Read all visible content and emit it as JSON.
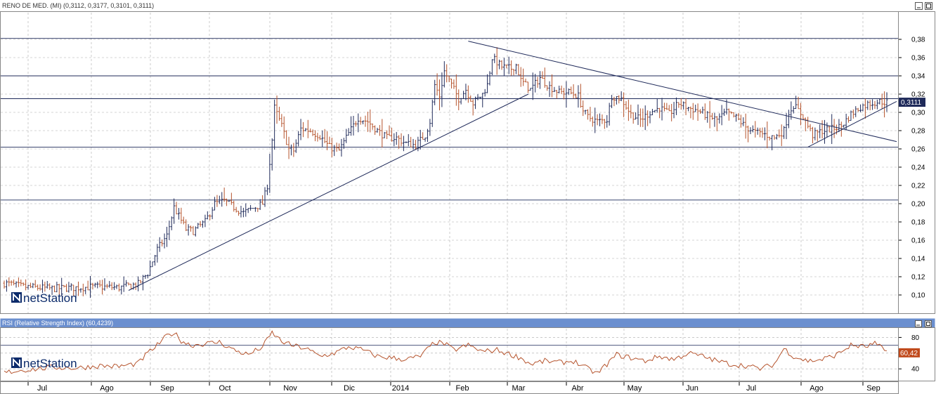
{
  "top_panel": {
    "title": "RENO DE MED. (MI) (0,3112, 0,3177, 0,3101, 0,3111)",
    "current_value_label": "0,3111",
    "brand": "netStation"
  },
  "bottom_panel": {
    "title": "RSI (Relative Strength Index) (60,4239)",
    "current_value_label": "60,42",
    "brand": "netStation"
  },
  "colors": {
    "up_bar": "#1f2a5a",
    "down_bar": "#b5532c",
    "trendline": "#1f2a5a",
    "rsi_line": "#b5532c",
    "grid": "#aaaaaa",
    "title_bar": "#6b8fcf",
    "value_badge": "#1f2a5a",
    "rsi_badge": "#c04a1c"
  },
  "chart_data": [
    {
      "type": "ohlc",
      "title": "RENO DE MED. (MI) (0,3112, 0,3177, 0,3101, 0,3111)",
      "y_ticks": [
        "0,10",
        "0,12",
        "0,14",
        "0,16",
        "0,18",
        "0,20",
        "0,22",
        "0,24",
        "0,26",
        "0,28",
        "0,30",
        "0,32",
        "0,34",
        "0,36",
        "0,38"
      ],
      "ylim": [
        0.08,
        0.41
      ],
      "x_labels": [
        "Jul",
        "Ago",
        "Sep",
        "Oct",
        "Nov",
        "Dic",
        "2014",
        "Feb",
        "Mar",
        "Abr",
        "May",
        "Jun",
        "Jul",
        "Ago",
        "Sep"
      ],
      "last": {
        "open": 0.3112,
        "high": 0.3177,
        "low": 0.3101,
        "close": 0.3111
      },
      "price_anchors": [
        [
          0,
          0.113
        ],
        [
          8,
          0.109
        ],
        [
          20,
          0.107
        ],
        [
          40,
          0.109
        ],
        [
          48,
          0.108
        ],
        [
          56,
          0.112
        ],
        [
          60,
          0.124
        ],
        [
          64,
          0.15
        ],
        [
          68,
          0.165
        ],
        [
          71,
          0.196
        ],
        [
          76,
          0.172
        ],
        [
          79,
          0.17
        ],
        [
          84,
          0.18
        ],
        [
          88,
          0.2
        ],
        [
          92,
          0.203
        ],
        [
          96,
          0.196
        ],
        [
          100,
          0.19
        ],
        [
          104,
          0.195
        ],
        [
          108,
          0.2
        ],
        [
          110,
          0.22
        ],
        [
          112,
          0.27
        ],
        [
          113,
          0.305
        ],
        [
          116,
          0.285
        ],
        [
          119,
          0.26
        ],
        [
          121,
          0.258
        ],
        [
          124,
          0.282
        ],
        [
          128,
          0.28
        ],
        [
          132,
          0.274
        ],
        [
          136,
          0.262
        ],
        [
          140,
          0.258
        ],
        [
          144,
          0.277
        ],
        [
          148,
          0.294
        ],
        [
          152,
          0.29
        ],
        [
          156,
          0.28
        ],
        [
          160,
          0.272
        ],
        [
          164,
          0.272
        ],
        [
          168,
          0.266
        ],
        [
          172,
          0.264
        ],
        [
          176,
          0.275
        ],
        [
          178,
          0.29
        ],
        [
          180,
          0.33
        ],
        [
          182,
          0.318
        ],
        [
          184,
          0.345
        ],
        [
          186,
          0.335
        ],
        [
          190,
          0.315
        ],
        [
          193,
          0.325
        ],
        [
          196,
          0.31
        ],
        [
          200,
          0.32
        ],
        [
          202,
          0.33
        ],
        [
          204,
          0.36
        ],
        [
          208,
          0.35
        ],
        [
          212,
          0.348
        ],
        [
          214,
          0.352
        ],
        [
          216,
          0.335
        ],
        [
          220,
          0.325
        ],
        [
          224,
          0.338
        ],
        [
          228,
          0.328
        ],
        [
          232,
          0.322
        ],
        [
          236,
          0.322
        ],
        [
          240,
          0.318
        ],
        [
          242,
          0.302
        ],
        [
          244,
          0.295
        ],
        [
          248,
          0.29
        ],
        [
          252,
          0.292
        ],
        [
          254,
          0.318
        ],
        [
          258,
          0.315
        ],
        [
          262,
          0.298
        ],
        [
          266,
          0.292
        ],
        [
          270,
          0.3
        ],
        [
          274,
          0.305
        ],
        [
          278,
          0.298
        ],
        [
          282,
          0.31
        ],
        [
          286,
          0.305
        ],
        [
          290,
          0.302
        ],
        [
          294,
          0.296
        ],
        [
          298,
          0.292
        ],
        [
          302,
          0.3
        ],
        [
          306,
          0.294
        ],
        [
          310,
          0.284
        ],
        [
          314,
          0.278
        ],
        [
          318,
          0.276
        ],
        [
          322,
          0.272
        ],
        [
          326,
          0.28
        ],
        [
          328,
          0.3
        ],
        [
          330,
          0.308
        ],
        [
          334,
          0.296
        ],
        [
          336,
          0.285
        ],
        [
          338,
          0.275
        ],
        [
          342,
          0.28
        ],
        [
          346,
          0.282
        ],
        [
          350,
          0.285
        ],
        [
          354,
          0.298
        ],
        [
          358,
          0.306
        ],
        [
          362,
          0.31
        ],
        [
          366,
          0.312
        ],
        [
          369,
          0.311
        ]
      ],
      "trendlines": [
        {
          "from": [
            52,
            0.105
          ],
          "to": [
            215,
            0.32
          ]
        },
        {
          "from": [
            194,
            0.378
          ],
          "to": [
            369,
            0.268
          ]
        },
        {
          "from": [
            336,
            0.262
          ],
          "to": [
            369,
            0.312
          ]
        }
      ],
      "horizontal_lines": [
        0.381,
        0.34,
        0.315,
        0.262,
        0.204
      ]
    },
    {
      "type": "line",
      "title": "RSI (Relative Strength Index) (60,4239)",
      "y_ticks": [
        "40",
        "60",
        "80"
      ],
      "ylim": [
        25,
        92
      ],
      "x_labels": [
        "Jul",
        "Ago",
        "Sep",
        "Oct",
        "Nov",
        "Dic",
        "2014",
        "Feb",
        "Mar",
        "Abr",
        "May",
        "Jun",
        "Jul",
        "Ago",
        "Sep"
      ],
      "last_value": 60.42,
      "reference_line": 70,
      "rsi_anchors": [
        [
          0,
          35
        ],
        [
          6,
          38
        ],
        [
          14,
          40
        ],
        [
          20,
          42
        ],
        [
          30,
          41
        ],
        [
          40,
          44
        ],
        [
          48,
          43
        ],
        [
          56,
          47
        ],
        [
          60,
          60
        ],
        [
          64,
          70
        ],
        [
          68,
          82
        ],
        [
          71,
          86
        ],
        [
          74,
          76
        ],
        [
          78,
          70
        ],
        [
          84,
          72
        ],
        [
          90,
          74
        ],
        [
          96,
          64
        ],
        [
          102,
          58
        ],
        [
          108,
          68
        ],
        [
          112,
          86
        ],
        [
          116,
          75
        ],
        [
          120,
          70
        ],
        [
          126,
          66
        ],
        [
          132,
          56
        ],
        [
          138,
          60
        ],
        [
          144,
          68
        ],
        [
          150,
          64
        ],
        [
          156,
          56
        ],
        [
          162,
          54
        ],
        [
          168,
          52
        ],
        [
          174,
          56
        ],
        [
          180,
          74
        ],
        [
          184,
          72
        ],
        [
          188,
          64
        ],
        [
          194,
          70
        ],
        [
          200,
          62
        ],
        [
          206,
          64
        ],
        [
          212,
          58
        ],
        [
          216,
          54
        ],
        [
          220,
          46
        ],
        [
          226,
          50
        ],
        [
          232,
          48
        ],
        [
          238,
          50
        ],
        [
          244,
          40
        ],
        [
          248,
          34
        ],
        [
          252,
          46
        ],
        [
          256,
          58
        ],
        [
          262,
          54
        ],
        [
          268,
          50
        ],
        [
          274,
          56
        ],
        [
          280,
          52
        ],
        [
          286,
          60
        ],
        [
          292,
          56
        ],
        [
          298,
          50
        ],
        [
          304,
          46
        ],
        [
          310,
          44
        ],
        [
          316,
          40
        ],
        [
          322,
          46
        ],
        [
          326,
          66
        ],
        [
          330,
          56
        ],
        [
          336,
          50
        ],
        [
          342,
          52
        ],
        [
          348,
          58
        ],
        [
          354,
          70
        ],
        [
          360,
          68
        ],
        [
          364,
          72
        ],
        [
          369,
          62
        ]
      ]
    }
  ]
}
